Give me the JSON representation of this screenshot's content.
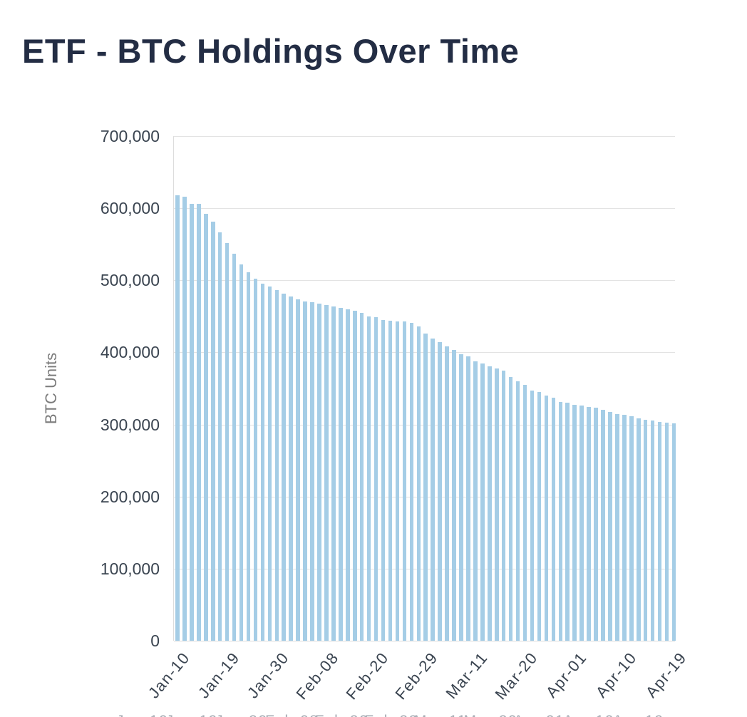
{
  "page": {
    "title": "ETF - BTC Holdings Over Time"
  },
  "chart_data": {
    "type": "bar",
    "title": "ETF - BTC Holdings Over Time",
    "xlabel": "",
    "ylabel": "BTC Units",
    "ylim": [
      0,
      700000
    ],
    "ytick_interval": 100000,
    "ytick_labels_bottom_to_top": [
      "0",
      "100,000",
      "200,000",
      "300,000",
      "400,000",
      "500,000",
      "600,000",
      "700,000"
    ],
    "grid": true,
    "legend": "none",
    "bar_color": "#a5cde6",
    "x_tick_every_n_bars": 7,
    "x_tick_labels": [
      "Jan-10",
      "Jan-19",
      "Jan-30",
      "Feb-08",
      "Feb-20",
      "Feb-29",
      "Mar-11",
      "Mar-20",
      "Apr-01",
      "Apr-10",
      "Apr-19"
    ],
    "values": [
      618000,
      616000,
      606500,
      606500,
      592500,
      581000,
      566500,
      552000,
      536500,
      522000,
      511000,
      502000,
      495500,
      491000,
      486500,
      482000,
      478000,
      473500,
      471000,
      469500,
      468000,
      465500,
      463500,
      461500,
      460000,
      457500,
      455000,
      450000,
      449000,
      445000,
      444000,
      442500,
      442500,
      441000,
      436500,
      426500,
      419000,
      414000,
      408000,
      403500,
      397500,
      394500,
      388000,
      385000,
      380500,
      377500,
      374500,
      366000,
      360000,
      354500,
      347000,
      345500,
      340500,
      337000,
      331000,
      330500,
      327500,
      326500,
      324000,
      323000,
      320500,
      317500,
      314500,
      313000,
      311000,
      309000,
      307000,
      305500,
      303500,
      302500,
      302000
    ]
  },
  "colors": {
    "title": "#232d44",
    "bar": "#a5cde6",
    "gridline": "#e3e3e3",
    "tick_label": "#3a4450",
    "axis_title": "#7b7b7b"
  }
}
